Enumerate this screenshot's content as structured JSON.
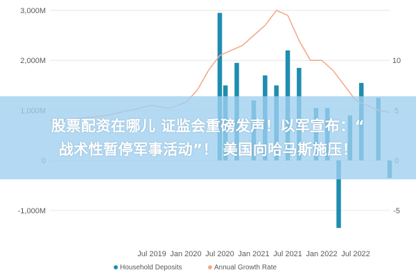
{
  "chart_data": {
    "type": "bar+line",
    "y_left_ticks": [
      "3,000M",
      "2,000M",
      "1,000M",
      "0",
      "-1,000M"
    ],
    "y_left_range": [
      -1500,
      3000
    ],
    "y_right_ticks": [
      "10",
      "5",
      "0",
      "-5"
    ],
    "y_right_range": [
      -7.5,
      15
    ],
    "x_ticks": [
      "Jul 2019",
      "Jan 2020",
      "Jul 2020",
      "Jan 2021",
      "Jul 2021",
      "Jan 2022",
      "Jul 2022"
    ],
    "x_tick_months": [
      18,
      24,
      30,
      36,
      42,
      48,
      54
    ],
    "bars_color": "#1f8db0",
    "line_color": "#f4a98a",
    "series": [
      {
        "name": "Household Deposits",
        "type": "bar",
        "months": [
          30,
          31,
          33,
          36,
          38,
          40,
          42,
          44,
          47,
          49,
          51,
          53,
          55,
          58,
          60
        ],
        "values": [
          2950,
          1500,
          1950,
          1200,
          1700,
          1500,
          2200,
          1850,
          1050,
          1050,
          -1350,
          900,
          1550,
          1250,
          -350
        ]
      },
      {
        "name": "Annual Growth Rate",
        "type": "line",
        "months": [
          0,
          5,
          10,
          14,
          18,
          21,
          24,
          26,
          28,
          30,
          32,
          34,
          36,
          38,
          40,
          42,
          44,
          46,
          48,
          50,
          52,
          54,
          56,
          58,
          60
        ],
        "values": [
          4.0,
          4.2,
          4.5,
          5.0,
          5.5,
          5.2,
          5.8,
          7.0,
          9.0,
          10.5,
          11.0,
          11.5,
          12.5,
          13.5,
          15.0,
          14.5,
          12.0,
          10.0,
          10.0,
          9.0,
          7.5,
          6.0,
          5.5,
          5.0,
          4.8
        ]
      }
    ],
    "legend": [
      "Household Deposits",
      "Annual Growth Rate"
    ],
    "legend_position": "bottom"
  },
  "overlay": {
    "line1": "股票配资在哪儿 证监会重磅发声！以军宣布：“",
    "line2": "战术性暂停军事活动”！ 美国向哈马斯施压！"
  }
}
